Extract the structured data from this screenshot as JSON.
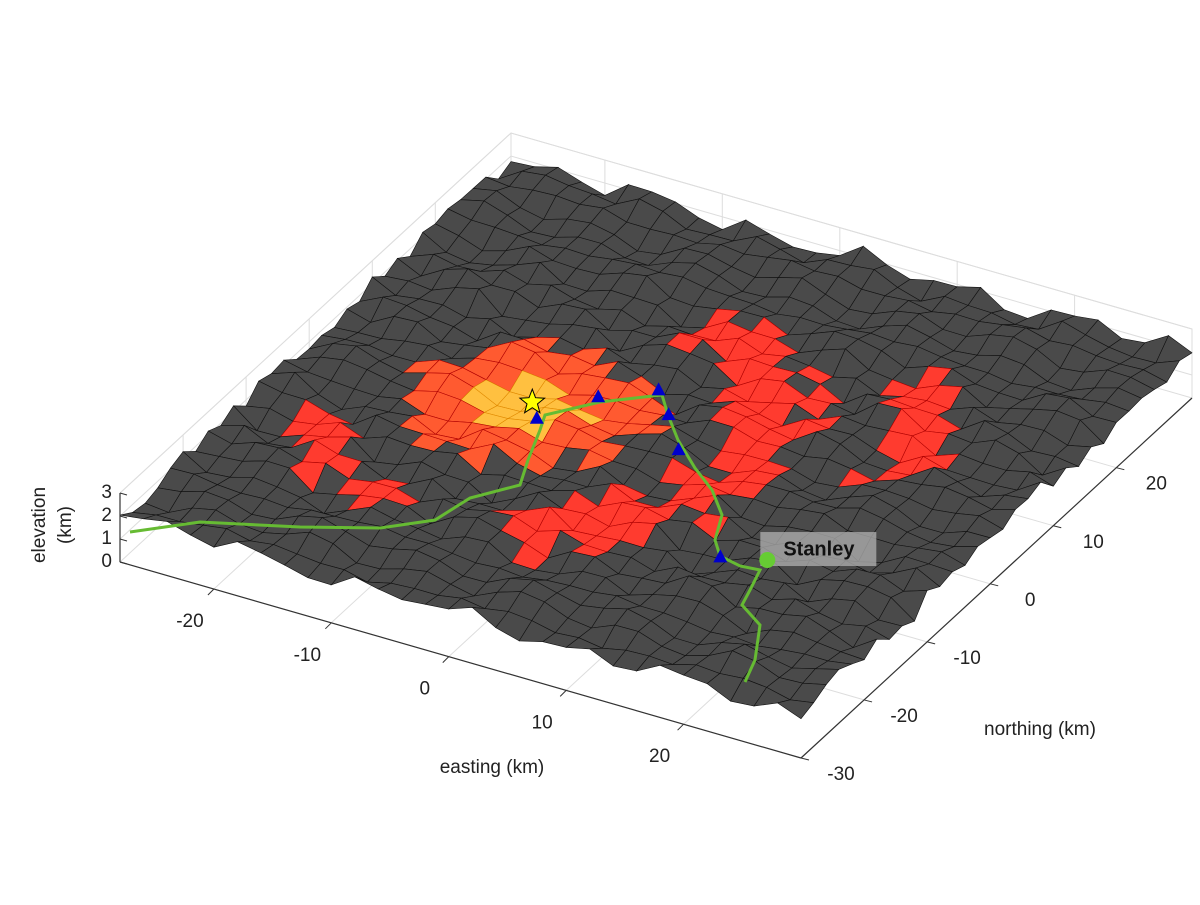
{
  "chart_data": {
    "type": "surface3d",
    "xlabel": "easting (km)",
    "ylabel": "northing (km)",
    "zlabel": [
      "elevation",
      "(km)"
    ],
    "xlim": [
      -28,
      30
    ],
    "ylim": [
      -30,
      32
    ],
    "zlim": [
      0,
      3
    ],
    "xticks": [
      -20,
      -10,
      0,
      10,
      20
    ],
    "yticks": [
      -30,
      -20,
      -10,
      0,
      10,
      20
    ],
    "zticks": [
      0,
      1,
      2,
      3
    ],
    "grid": true,
    "vent": {
      "x": -9,
      "y": 0,
      "color": "#ffff00"
    },
    "stations": {
      "color": "#0000cc",
      "x": [
        -5,
        -2,
        1,
        -7,
        4,
        14
      ],
      "y": [
        3,
        7,
        3,
        -3,
        -1,
        -13
      ]
    },
    "town": {
      "name": "Stanley",
      "x": 18,
      "y": -13,
      "color": "#66cc33"
    }
  }
}
